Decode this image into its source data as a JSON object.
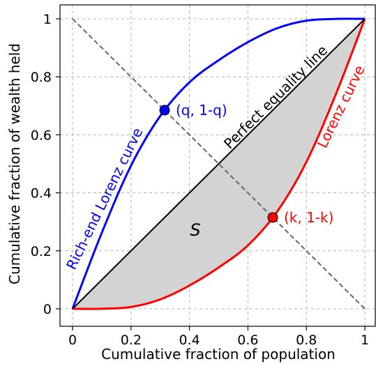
{
  "chart_data": {
    "type": "line",
    "xlabel": "Cumulative fraction of population",
    "ylabel": "Cumulative fraction of wealth held",
    "xlim": [
      0,
      1
    ],
    "ylim": [
      0,
      1
    ],
    "grid": true,
    "xticks": [
      0,
      0.2,
      0.4,
      0.6,
      0.8,
      1
    ],
    "xtick_labels": [
      "0",
      "0.2",
      "0.4",
      "0.6",
      "0.8",
      "1"
    ],
    "yticks": [
      0,
      0.2,
      0.4,
      0.6,
      0.8,
      1
    ],
    "ytick_labels": [
      "0",
      "0.2",
      "0.4",
      "0.6",
      "0.8",
      "1"
    ],
    "series": [
      {
        "name": "Lorenz curve",
        "color": "#ff0000",
        "x": [
          0,
          0.1,
          0.2,
          0.3,
          0.4,
          0.5,
          0.6,
          0.7,
          0.8,
          0.9,
          1
        ],
        "y": [
          0,
          0.0004,
          0.0064,
          0.0324,
          0.0803,
          0.1427,
          0.2189,
          0.3351,
          0.5063,
          0.7379,
          1
        ]
      },
      {
        "name": "Rich-end Lorenz curve",
        "color": "#0000ff",
        "x": [
          0,
          0.1,
          0.2,
          0.3,
          0.4,
          0.5,
          0.6,
          0.7,
          0.8,
          0.9,
          1
        ],
        "y": [
          0,
          0.2621,
          0.4937,
          0.6649,
          0.7811,
          0.8573,
          0.9197,
          0.9676,
          0.9936,
          0.9996,
          1
        ]
      },
      {
        "name": "Perfect equality line",
        "color": "#000000",
        "x": [
          0,
          1
        ],
        "y": [
          0,
          1
        ]
      },
      {
        "name": "anti-diagonal",
        "color": "#666666",
        "style": "dashed",
        "x": [
          0,
          1
        ],
        "y": [
          1,
          0
        ]
      }
    ],
    "shaded_region": {
      "label": "S",
      "between": [
        "Perfect equality line",
        "Lorenz curve"
      ],
      "color": "#d3d3d3"
    },
    "points": [
      {
        "label": "(q, 1-q)",
        "x": 0.315,
        "y": 0.685,
        "color": "#0000ff"
      },
      {
        "label": "(k, 1-k)",
        "x": 0.685,
        "y": 0.315,
        "color": "#ff0000"
      }
    ],
    "annotations": {
      "equality_label": "Perfect equality line",
      "lorenz_label": "Lorenz curve",
      "rich_label": "Rich-end Lorenz curve",
      "area_label": "S"
    }
  }
}
